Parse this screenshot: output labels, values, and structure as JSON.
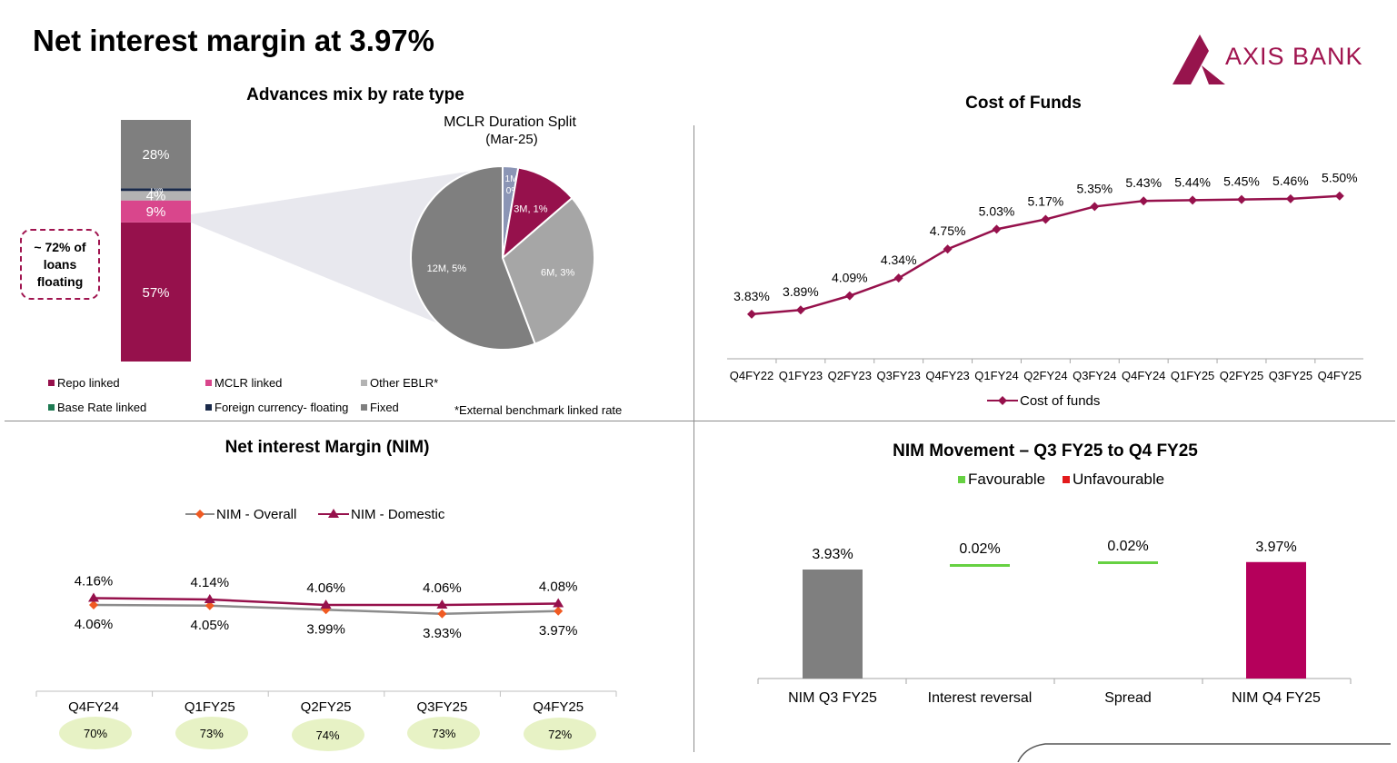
{
  "page": {
    "title": "Net interest margin at 3.97%"
  },
  "brand": {
    "logo_text": "AXIS BANK",
    "color": "#97144d"
  },
  "colors": {
    "repo": "#96114c",
    "mclr": "#d9468c",
    "other_eblr": "#b3b3b3",
    "base_rate": "#1e7a52",
    "foreign": "#1a2a4a",
    "fixed": "#7f7f7f",
    "line": "#96114c",
    "nim_overall": "#f05a22",
    "nim_domestic": "#96114c",
    "favourable": "#66d142",
    "unfavourable": "#e31a1c",
    "nim_q4": "#b5005b",
    "pill": "#e7f2c5"
  },
  "advances_mix": {
    "title": "Advances mix by rate type",
    "callout": "~ 72% of loans floating",
    "footnote": "*External benchmark linked rate"
  },
  "chart_data": [
    {
      "type": "bar",
      "title": "Advances mix by rate type",
      "stacked": true,
      "categories": [
        ""
      ],
      "series": [
        {
          "name": "Repo linked",
          "values": [
            57
          ],
          "label": "57%"
        },
        {
          "name": "MCLR linked",
          "values": [
            9
          ],
          "label": "9%"
        },
        {
          "name": "Other EBLR*",
          "values": [
            4
          ],
          "label": "4%"
        },
        {
          "name": "Base Rate linked",
          "values": [
            0
          ],
          "label": "0%"
        },
        {
          "name": "Foreign currency- floating",
          "values": [
            1
          ],
          "label": "1%"
        },
        {
          "name": "Fixed",
          "values": [
            28
          ],
          "label": "28%"
        }
      ],
      "legend": [
        "Repo linked",
        "MCLR linked",
        "Other EBLR*",
        "Base Rate linked",
        "Foreign currency- floating",
        "Fixed"
      ]
    },
    {
      "type": "pie",
      "title": "MCLR Duration Split",
      "subtitle": "(Mar-25)",
      "slices": [
        {
          "label": "1M, 0%",
          "value": 0.25
        },
        {
          "label": "3M, 1%",
          "value": 1
        },
        {
          "label": "6M, 3%",
          "value": 2.8
        },
        {
          "label": "12M, 5%",
          "value": 5.1
        }
      ]
    },
    {
      "type": "line",
      "title": "Cost of Funds",
      "categories": [
        "Q4FY22",
        "Q1FY23",
        "Q2FY23",
        "Q3FY23",
        "Q4FY23",
        "Q1FY24",
        "Q2FY24",
        "Q3FY24",
        "Q4FY24",
        "Q1FY25",
        "Q2FY25",
        "Q3FY25",
        "Q4FY25"
      ],
      "series": [
        {
          "name": "Cost of funds",
          "values": [
            3.83,
            3.89,
            4.09,
            4.34,
            4.75,
            5.03,
            5.17,
            5.35,
            5.43,
            5.44,
            5.45,
            5.46,
            5.5
          ],
          "labels": [
            "3.83%",
            "3.89%",
            "4.09%",
            "4.34%",
            "4.75%",
            "5.03%",
            "5.17%",
            "5.35%",
            "5.43%",
            "5.44%",
            "5.45%",
            "5.46%",
            "5.50%"
          ]
        }
      ],
      "ylim": [
        3.2,
        6.6
      ]
    },
    {
      "type": "line",
      "title": "Net interest Margin (NIM)",
      "categories": [
        "Q4FY24",
        "Q1FY25",
        "Q2FY25",
        "Q3FY25",
        "Q4FY25"
      ],
      "series": [
        {
          "name": "NIM - Overall",
          "values": [
            4.06,
            4.05,
            3.99,
            3.93,
            3.97
          ],
          "labels": [
            "4.06%",
            "4.05%",
            "3.99%",
            "3.93%",
            "3.97%"
          ]
        },
        {
          "name": "NIM - Domestic",
          "values": [
            4.16,
            4.14,
            4.06,
            4.06,
            4.08
          ],
          "labels": [
            "4.16%",
            "4.14%",
            "4.06%",
            "4.06%",
            "4.08%"
          ]
        }
      ],
      "floating_share": [
        "70%",
        "73%",
        "74%",
        "73%",
        "72%"
      ],
      "ylim": [
        0,
        4.8
      ]
    },
    {
      "type": "bar",
      "subtype": "waterfall",
      "title": "NIM Movement – Q3 FY25 to Q4 FY25",
      "legend": [
        "Favourable",
        "Unfavourable"
      ],
      "categories": [
        "NIM Q3 FY25",
        "Interest reversal",
        "Spread",
        "NIM Q4 FY25"
      ],
      "values": [
        3.93,
        0.02,
        0.02,
        3.97
      ],
      "labels": [
        "3.93%",
        "0.02%",
        "0.02%",
        "3.97%"
      ],
      "kinds": [
        "total",
        "favourable",
        "favourable",
        "total"
      ],
      "ylim": [
        0,
        4.6
      ]
    }
  ]
}
